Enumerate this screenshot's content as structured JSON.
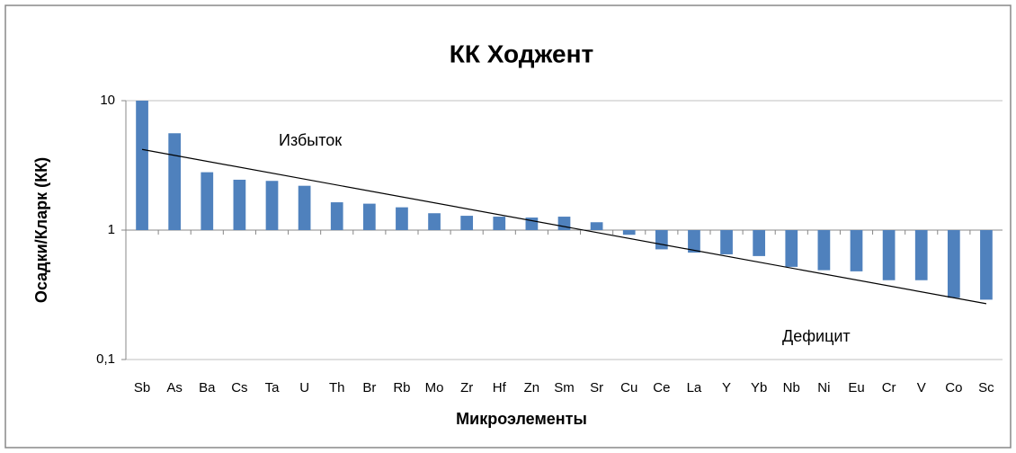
{
  "chart_data": {
    "type": "bar",
    "title": "КК Ходжент",
    "x_label": "Микроэлементы",
    "y_label": "Осадки/Кларк (КК)",
    "categories": [
      "Sb",
      "As",
      "Ba",
      "Cs",
      "Ta",
      "U",
      "Th",
      "Br",
      "Rb",
      "Mo",
      "Zr",
      "Hf",
      "Zn",
      "Sm",
      "Sr",
      "Cu",
      "Ce",
      "La",
      "Y",
      "Yb",
      "Nb",
      "Ni",
      "Eu",
      "Cr",
      "V",
      "Co",
      "Sc"
    ],
    "values": [
      10,
      5.6,
      2.8,
      2.45,
      2.4,
      2.2,
      1.64,
      1.6,
      1.5,
      1.35,
      1.29,
      1.27,
      1.25,
      1.27,
      1.15,
      0.92,
      0.71,
      0.67,
      0.65,
      0.63,
      0.52,
      0.49,
      0.48,
      0.41,
      0.41,
      0.3,
      0.29
    ],
    "color": "#4f81bd",
    "log_scale": true,
    "baseline": 1,
    "ylim": [
      0.1,
      10
    ],
    "yticks": [
      10,
      1,
      {
        "value": 0.1,
        "label": "0,1"
      }
    ],
    "grid": true,
    "trendline": {
      "start": 4.2,
      "end": 0.27,
      "color": "#000000"
    },
    "annotations": [
      "Избыток",
      "Дефицит"
    ]
  }
}
